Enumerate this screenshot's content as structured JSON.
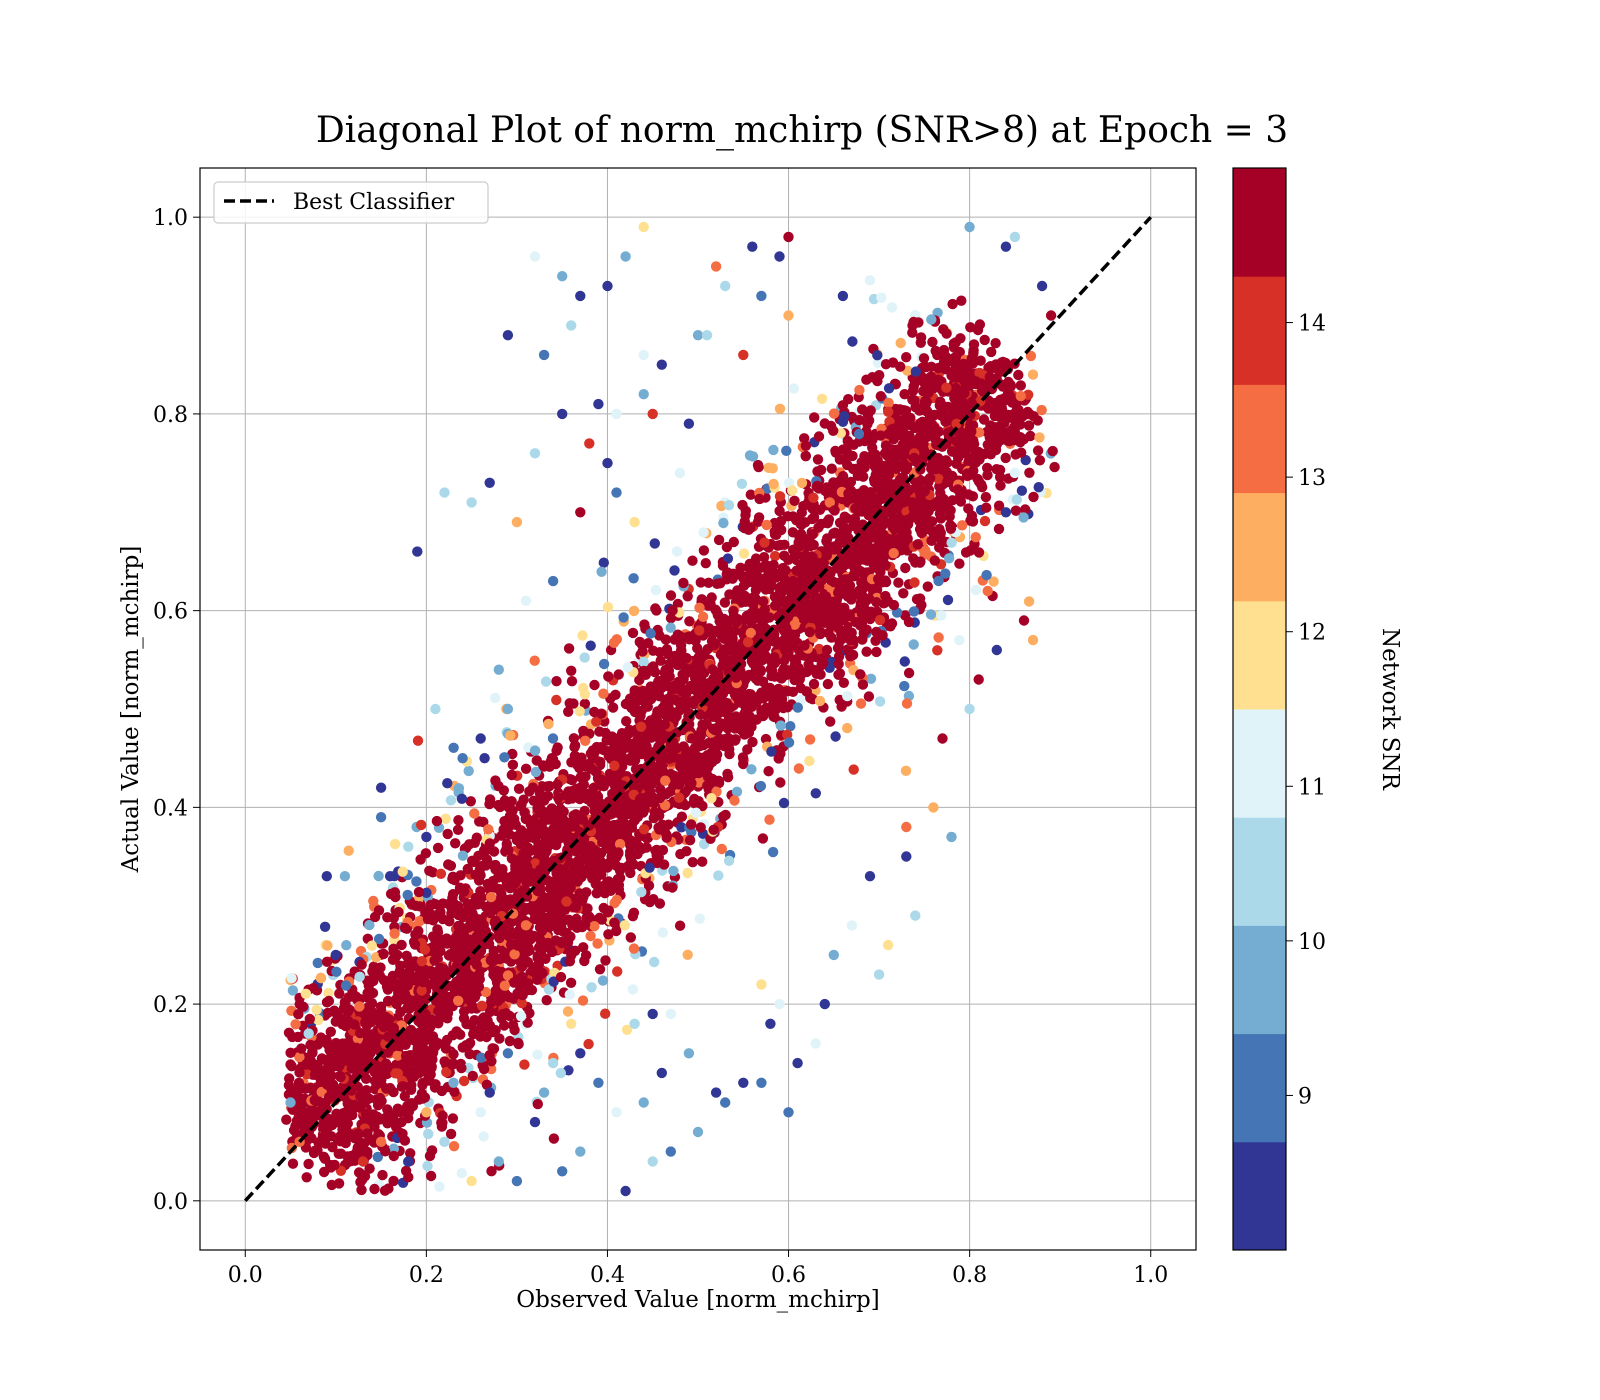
{
  "chart_data": {
    "type": "scatter",
    "title": "Diagonal Plot of norm_mchirp (SNR>8) at Epoch = 3",
    "xlabel": "Observed Value [norm_mchirp]",
    "ylabel": "Actual Value [norm_mchirp]",
    "xlim": [
      -0.05,
      1.05
    ],
    "ylim": [
      -0.05,
      1.05
    ],
    "x_ticks": [
      "0.0",
      "0.2",
      "0.4",
      "0.6",
      "0.8",
      "1.0"
    ],
    "y_ticks": [
      "0.0",
      "0.2",
      "0.4",
      "0.6",
      "0.8",
      "1.0"
    ],
    "grid": true,
    "legend": {
      "placement": "upper-left",
      "entries": [
        "Best Classifier"
      ]
    },
    "reference_line": {
      "name": "Best Classifier",
      "x": [
        0,
        1
      ],
      "y": [
        0,
        1
      ],
      "style": "dashed",
      "color": "#000000"
    },
    "colorbar": {
      "label": "Network SNR",
      "range": [
        8,
        15
      ],
      "ticks": [
        "9",
        "10",
        "11",
        "12",
        "13",
        "14"
      ],
      "tick_values": [
        9,
        10,
        11,
        12,
        13,
        14
      ],
      "colors": [
        "#313695",
        "#4575b4",
        "#74add1",
        "#abd9e9",
        "#e0f3f8",
        "#fee090",
        "#fdae61",
        "#f46d43",
        "#d73027",
        "#a50026"
      ]
    },
    "points": [
      [
        0.19,
        0.66,
        0
      ],
      [
        0.29,
        0.88,
        0
      ],
      [
        0.09,
        0.33,
        0
      ],
      [
        0.15,
        0.42,
        0
      ],
      [
        0.15,
        0.39,
        1
      ],
      [
        0.22,
        0.72,
        3
      ],
      [
        0.27,
        0.73,
        0
      ],
      [
        0.37,
        0.92,
        0
      ],
      [
        0.35,
        0.94,
        2
      ],
      [
        0.36,
        0.89,
        3
      ],
      [
        0.42,
        0.96,
        2
      ],
      [
        0.44,
        0.99,
        5
      ],
      [
        0.39,
        0.81,
        0
      ],
      [
        0.33,
        0.86,
        1
      ],
      [
        0.4,
        0.93,
        0
      ],
      [
        0.5,
        0.88,
        2
      ],
      [
        0.44,
        0.86,
        4
      ],
      [
        0.49,
        0.79,
        0
      ],
      [
        0.45,
        0.8,
        8
      ],
      [
        0.29,
        0.5,
        2
      ],
      [
        0.25,
        0.71,
        3
      ],
      [
        0.32,
        0.96,
        4
      ],
      [
        0.56,
        0.97,
        0
      ],
      [
        0.6,
        0.98,
        9
      ],
      [
        0.52,
        0.95,
        7
      ],
      [
        0.66,
        0.92,
        0
      ],
      [
        0.48,
        0.74,
        4
      ],
      [
        0.41,
        0.72,
        1
      ],
      [
        0.57,
        0.92,
        1
      ],
      [
        0.6,
        0.9,
        6
      ],
      [
        0.53,
        0.93,
        3
      ],
      [
        0.59,
        0.96,
        0
      ],
      [
        0.51,
        0.88,
        3
      ],
      [
        0.55,
        0.86,
        8
      ],
      [
        0.6,
        0.09,
        1
      ],
      [
        0.61,
        0.14,
        0
      ],
      [
        0.58,
        0.18,
        0
      ],
      [
        0.57,
        0.22,
        5
      ],
      [
        0.59,
        0.2,
        4
      ],
      [
        0.7,
        0.23,
        3
      ],
      [
        0.74,
        0.29,
        3
      ],
      [
        0.73,
        0.35,
        0
      ],
      [
        0.78,
        0.37,
        2
      ],
      [
        0.71,
        0.26,
        5
      ],
      [
        0.76,
        0.4,
        6
      ],
      [
        0.77,
        0.47,
        9
      ],
      [
        0.8,
        0.5,
        3
      ],
      [
        0.81,
        0.53,
        9
      ],
      [
        0.87,
        0.57,
        6
      ],
      [
        0.86,
        0.59,
        9
      ],
      [
        0.83,
        0.56,
        0
      ],
      [
        0.82,
        0.62,
        7
      ],
      [
        0.84,
        0.7,
        0
      ],
      [
        0.85,
        0.74,
        4
      ],
      [
        0.89,
        0.9,
        9
      ],
      [
        0.88,
        0.93,
        0
      ],
      [
        0.85,
        0.98,
        3
      ],
      [
        0.84,
        0.97,
        0
      ],
      [
        0.8,
        0.99,
        2
      ],
      [
        0.87,
        0.84,
        6
      ],
      [
        0.55,
        0.12,
        0
      ],
      [
        0.53,
        0.1,
        1
      ],
      [
        0.5,
        0.07,
        2
      ],
      [
        0.49,
        0.15,
        2
      ],
      [
        0.47,
        0.05,
        1
      ],
      [
        0.45,
        0.04,
        3
      ],
      [
        0.47,
        0.19,
        4
      ],
      [
        0.45,
        0.19,
        0
      ],
      [
        0.52,
        0.11,
        0
      ],
      [
        0.57,
        0.12,
        1
      ],
      [
        0.63,
        0.16,
        4
      ],
      [
        0.64,
        0.2,
        0
      ],
      [
        0.65,
        0.25,
        2
      ],
      [
        0.67,
        0.28,
        4
      ],
      [
        0.69,
        0.33,
        0
      ],
      [
        0.73,
        0.38,
        7
      ],
      [
        0.07,
        0.17,
        3
      ],
      [
        0.06,
        0.06,
        7
      ],
      [
        0.05,
        0.1,
        2
      ],
      [
        0.11,
        0.33,
        2
      ],
      [
        0.1,
        0.25,
        0
      ],
      [
        0.2,
        0.37,
        0
      ],
      [
        0.21,
        0.5,
        3
      ],
      [
        0.24,
        0.45,
        1
      ],
      [
        0.26,
        0.47,
        0
      ],
      [
        0.28,
        0.54,
        2
      ],
      [
        0.31,
        0.61,
        4
      ],
      [
        0.34,
        0.63,
        1
      ],
      [
        0.37,
        0.7,
        9
      ],
      [
        0.4,
        0.75,
        0
      ],
      [
        0.41,
        0.8,
        4
      ],
      [
        0.44,
        0.82,
        2
      ],
      [
        0.46,
        0.85,
        0
      ],
      [
        0.43,
        0.69,
        5
      ],
      [
        0.18,
        0.36,
        3
      ],
      [
        0.16,
        0.33,
        0
      ],
      [
        0.3,
        0.69,
        6
      ],
      [
        0.32,
        0.76,
        3
      ],
      [
        0.35,
        0.8,
        0
      ],
      [
        0.38,
        0.77,
        8
      ],
      [
        0.42,
        0.01,
        0
      ],
      [
        0.37,
        0.05,
        2
      ],
      [
        0.35,
        0.03,
        1
      ],
      [
        0.32,
        0.08,
        0
      ],
      [
        0.28,
        0.04,
        2
      ],
      [
        0.25,
        0.02,
        5
      ],
      [
        0.22,
        0.06,
        3
      ],
      [
        0.18,
        0.04,
        0
      ],
      [
        0.15,
        0.06,
        7
      ],
      [
        0.13,
        0.04,
        8
      ],
      [
        0.3,
        0.02,
        1
      ],
      [
        0.41,
        0.09,
        4
      ],
      [
        0.39,
        0.12,
        1
      ],
      [
        0.37,
        0.15,
        0
      ],
      [
        0.34,
        0.14,
        3
      ],
      [
        0.44,
        0.1,
        2
      ],
      [
        0.46,
        0.13,
        0
      ],
      [
        0.33,
        0.11,
        2
      ],
      [
        0.27,
        0.11,
        0
      ],
      [
        0.26,
        0.09,
        4
      ],
      [
        0.2,
        0.09,
        6
      ],
      [
        0.23,
        0.12,
        2
      ],
      [
        0.29,
        0.15,
        1
      ],
      [
        0.36,
        0.18,
        5
      ],
      [
        0.43,
        0.18,
        3
      ]
    ]
  }
}
